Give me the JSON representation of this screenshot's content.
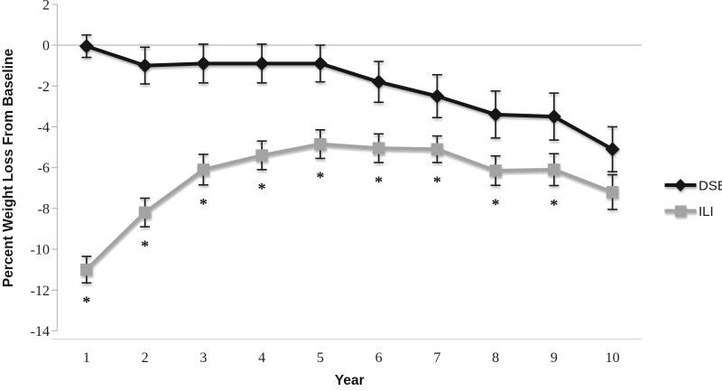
{
  "figure": {
    "background": "#ffffff",
    "description": "Line chart of percent weight loss from baseline over 10 years for DSE and ILI groups with error bars and significance asterisks"
  },
  "chart_data": {
    "type": "line",
    "title": "",
    "xlabel": "Year",
    "ylabel": "Percent Weight Loss From Baseline",
    "x_categories": [
      "1",
      "2",
      "3",
      "4",
      "5",
      "6",
      "7",
      "8",
      "9",
      "10"
    ],
    "yticks": [
      2,
      0,
      -2,
      -4,
      -6,
      -8,
      -10,
      -12,
      -14
    ],
    "ylim": [
      -14,
      2
    ],
    "grid": "zero-line-only",
    "legend_position": "right-middle",
    "significance_marker": "*",
    "colors": {
      "axis_line": "#bcbcbc",
      "baseline_line": "#d9d9d9",
      "zero_line": "#bcbcbc",
      "error_bar": "#1b1b1b",
      "tick_text": "#222222",
      "title_text": "#151515"
    },
    "series": [
      {
        "name": "DSE",
        "marker": "diamond",
        "color": "#121212",
        "values": [
          -0.05,
          -1.0,
          -0.9,
          -0.9,
          -0.9,
          -1.8,
          -2.5,
          -3.4,
          -3.5,
          -5.1
        ],
        "errors": [
          0.55,
          0.9,
          0.95,
          0.95,
          0.9,
          1.0,
          1.05,
          1.15,
          1.15,
          1.1
        ],
        "significant": [
          false,
          false,
          false,
          false,
          false,
          false,
          false,
          false,
          false,
          false
        ]
      },
      {
        "name": "ILI",
        "marker": "square",
        "color": "#a3a3a3",
        "values": [
          -11.0,
          -8.2,
          -6.1,
          -5.4,
          -4.85,
          -5.05,
          -5.1,
          -6.15,
          -6.1,
          -7.2
        ],
        "errors": [
          0.65,
          0.7,
          0.75,
          0.7,
          0.7,
          0.7,
          0.65,
          0.72,
          0.78,
          0.85
        ],
        "significant": [
          true,
          true,
          true,
          true,
          true,
          true,
          true,
          true,
          true,
          false
        ]
      }
    ]
  }
}
